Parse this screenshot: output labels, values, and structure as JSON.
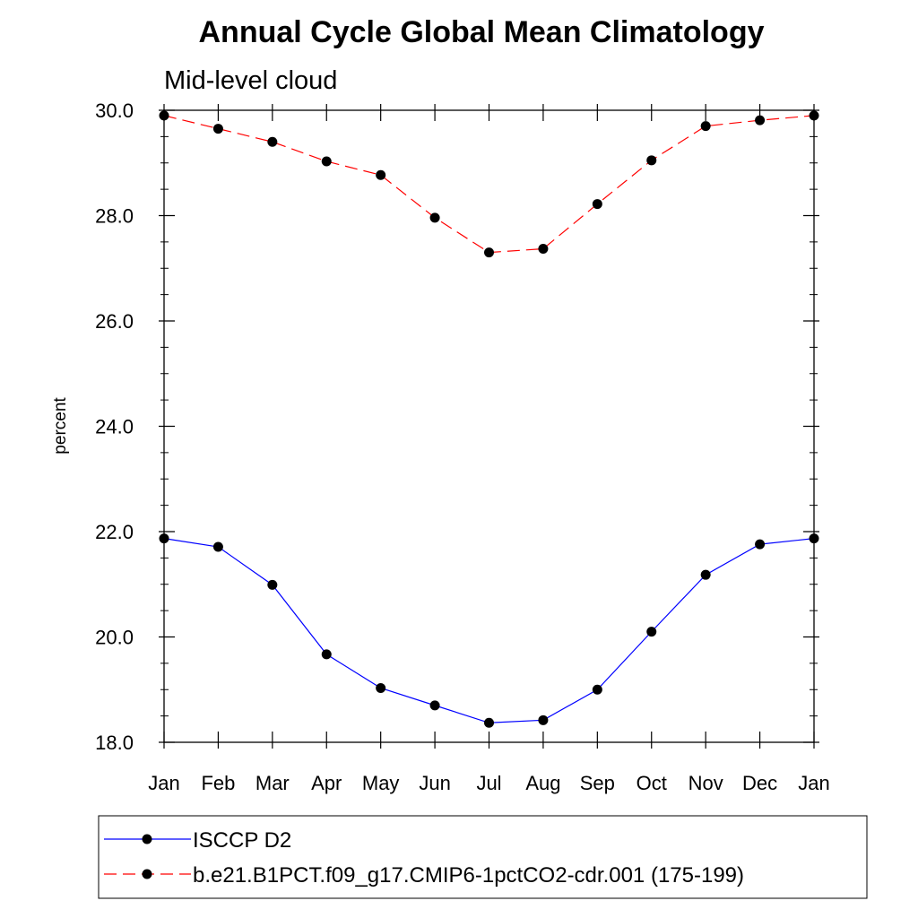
{
  "chart_data": {
    "type": "line",
    "title": "Annual Cycle Global Mean Climatology",
    "subtitle": "Mid-level cloud",
    "xlabel": "",
    "ylabel": "percent",
    "categories": [
      "Jan",
      "Feb",
      "Mar",
      "Apr",
      "May",
      "Jun",
      "Jul",
      "Aug",
      "Sep",
      "Oct",
      "Nov",
      "Dec",
      "Jan"
    ],
    "ylim": [
      18.0,
      30.0
    ],
    "y_ticks": [
      18.0,
      20.0,
      22.0,
      24.0,
      26.0,
      28.0,
      30.0
    ],
    "y_tick_labels": [
      "18.0",
      "20.0",
      "22.0",
      "24.0",
      "26.0",
      "28.0",
      "30.0"
    ],
    "y_minor_step": 0.5,
    "grid": false,
    "legend_position": "bottom",
    "series": [
      {
        "name": "ISCCP D2",
        "color": "#0000ff",
        "dash": "solid",
        "values": [
          21.87,
          21.71,
          20.99,
          19.67,
          19.03,
          18.7,
          18.37,
          18.42,
          19.0,
          20.1,
          21.18,
          21.76,
          21.87
        ]
      },
      {
        "name": "b.e21.B1PCT.f09_g17.CMIP6-1pctCO2-cdr.001 (175-199)",
        "color": "#ff0000",
        "dash": "dashed",
        "values": [
          29.9,
          29.65,
          29.4,
          29.03,
          28.77,
          27.96,
          27.3,
          27.37,
          28.22,
          29.05,
          29.7,
          29.81,
          29.9
        ]
      }
    ],
    "marker_color": "#000000"
  }
}
